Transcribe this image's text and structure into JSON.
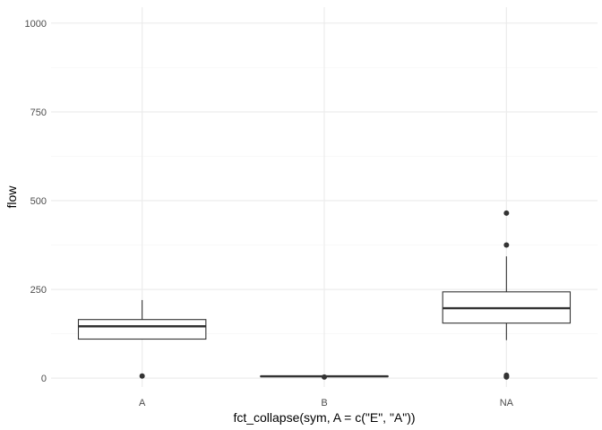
{
  "chart_data": {
    "type": "box",
    "title": "",
    "xlabel": "fct_collapse(sym, A = c(\"E\", \"A\"))",
    "ylabel": "flow",
    "categories": [
      "A",
      "B",
      "NA"
    ],
    "ylim": [
      -25,
      1045
    ],
    "y_ticks": [
      0,
      250,
      500,
      750,
      1000
    ],
    "y_tick_labels": [
      "0",
      "250",
      "500",
      "750",
      "1000"
    ],
    "y_minor_ticks": [
      125,
      375,
      625,
      875
    ],
    "grid": true,
    "legend": "none",
    "colors": {
      "box_stroke": "#333333",
      "box_fill": "#ffffff",
      "grid": "#ebebeb"
    },
    "boxes": [
      {
        "category": "A",
        "min": 110,
        "q1": 110,
        "median": 146,
        "q3": 165,
        "max": 220,
        "outliers": [
          6
        ]
      },
      {
        "category": "B",
        "min": 4,
        "q1": 4,
        "median": 5,
        "q3": 6,
        "max": 6,
        "outliers": [
          3
        ]
      },
      {
        "category": "NA",
        "min": 107,
        "q1": 155,
        "median": 197,
        "q3": 243,
        "max": 343,
        "outliers": [
          465,
          375,
          8,
          5,
          3
        ]
      }
    ]
  }
}
